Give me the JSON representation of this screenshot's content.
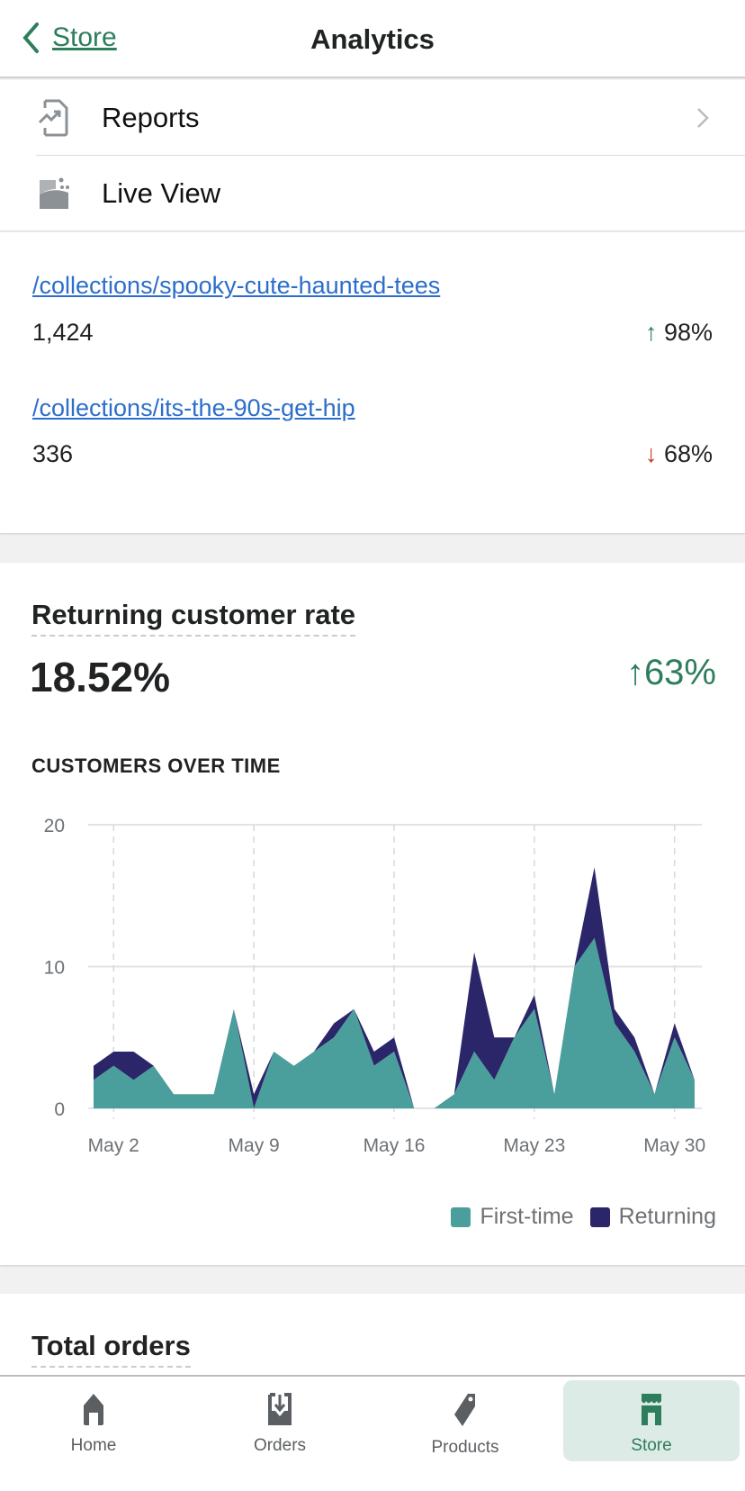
{
  "header": {
    "back_label": "Store",
    "title": "Analytics"
  },
  "menu": [
    {
      "label": "Reports",
      "icon": "reports-icon"
    },
    {
      "label": "Live View",
      "icon": "live-view-icon"
    }
  ],
  "top_pages": [
    {
      "path": "/collections/spooky-cute-haunted-tees",
      "value": "1,424",
      "change": "98%",
      "direction": "up"
    },
    {
      "path": "/collections/its-the-90s-get-hip",
      "value": "336",
      "change": "68%",
      "direction": "down"
    }
  ],
  "returning": {
    "title": "Returning customer rate",
    "value": "18.52%",
    "change": "63%",
    "direction": "up"
  },
  "chart_data": {
    "type": "area",
    "title": "CUSTOMERS OVER TIME",
    "stacked": true,
    "x": [
      "May 1",
      "May 2",
      "May 3",
      "May 4",
      "May 5",
      "May 6",
      "May 7",
      "May 8",
      "May 9",
      "May 10",
      "May 11",
      "May 12",
      "May 13",
      "May 14",
      "May 15",
      "May 16",
      "May 17",
      "May 18",
      "May 19",
      "May 20",
      "May 21",
      "May 22",
      "May 23",
      "May 24",
      "May 25",
      "May 26",
      "May 27",
      "May 28",
      "May 29",
      "May 30",
      "May 31"
    ],
    "x_ticks": [
      "May 2",
      "May 9",
      "May 16",
      "May 23",
      "May 30"
    ],
    "y_ticks": [
      "0",
      "10",
      "20"
    ],
    "ylim": [
      0,
      20
    ],
    "series": [
      {
        "name": "First-time",
        "color": "#4a9e9b",
        "values": [
          2,
          3,
          2,
          3,
          1,
          1,
          1,
          7,
          0,
          4,
          3,
          4,
          5,
          7,
          3,
          4,
          0,
          0,
          1,
          4,
          2,
          5,
          7,
          1,
          10,
          12,
          6,
          4,
          1,
          5,
          2
        ]
      },
      {
        "name": "Returning",
        "color": "#2b2669",
        "values": [
          1,
          1,
          2,
          0,
          0,
          0,
          0,
          0,
          1,
          0,
          0,
          0,
          1,
          0,
          1,
          1,
          0,
          0,
          0,
          7,
          3,
          0,
          1,
          0,
          0,
          5,
          1,
          1,
          0,
          1,
          0
        ]
      }
    ],
    "legend": "bottom-right"
  },
  "total_orders": {
    "title": "Total orders"
  },
  "nav": [
    {
      "label": "Home"
    },
    {
      "label": "Orders"
    },
    {
      "label": "Products"
    },
    {
      "label": "Store",
      "active": true
    }
  ],
  "colors": {
    "accent": "#2e7d5b",
    "link": "#2c6ecb",
    "down": "#c0392b"
  }
}
